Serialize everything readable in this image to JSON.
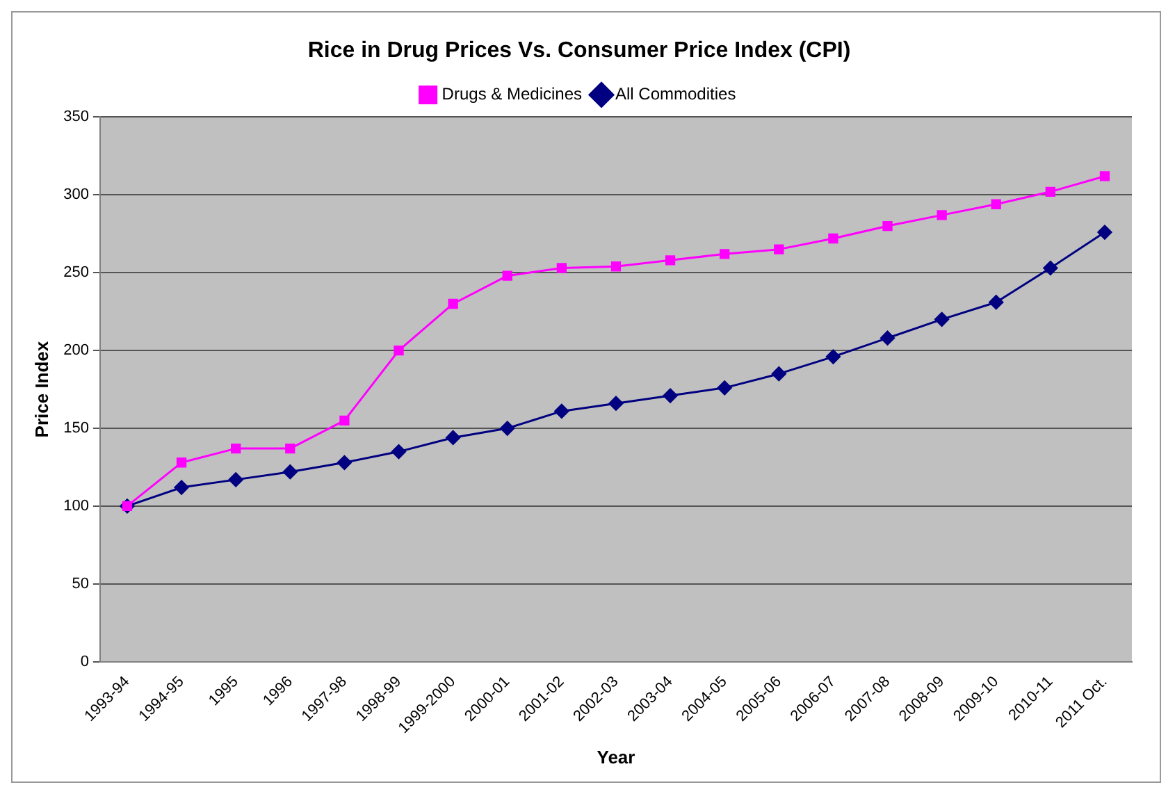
{
  "chart_data": {
    "type": "line",
    "title": "Rice in Drug Prices Vs. Consumer Price Index (CPI)",
    "xlabel": "Year",
    "ylabel": "Price Index",
    "categories": [
      "1993-94",
      "1994-95",
      "1995",
      "1996",
      "1997-98",
      "1998-99",
      "1999-2000",
      "2000-01",
      "2001-02",
      "2002-03",
      "2003-04",
      "2004-05",
      "2005-06",
      "2006-07",
      "2007-08",
      "2008-09",
      "2009-10",
      "2010-11",
      "2011 Oct."
    ],
    "series": [
      {
        "name": "All Commodities",
        "color": "#000080",
        "marker": "diamond",
        "values": [
          100,
          112,
          117,
          122,
          128,
          135,
          144,
          150,
          161,
          166,
          171,
          176,
          185,
          196,
          208,
          220,
          231,
          253,
          276
        ]
      },
      {
        "name": "Drugs & Medicines",
        "color": "#ff00ff",
        "marker": "square",
        "values": [
          100,
          128,
          137,
          137,
          155,
          200,
          230,
          248,
          253,
          254,
          258,
          262,
          265,
          272,
          280,
          287,
          294,
          302,
          312
        ]
      }
    ],
    "ylim": [
      0,
      350
    ],
    "yticks": [
      0,
      50,
      100,
      150,
      200,
      250,
      300,
      350
    ],
    "grid": "y",
    "legend": "top"
  }
}
